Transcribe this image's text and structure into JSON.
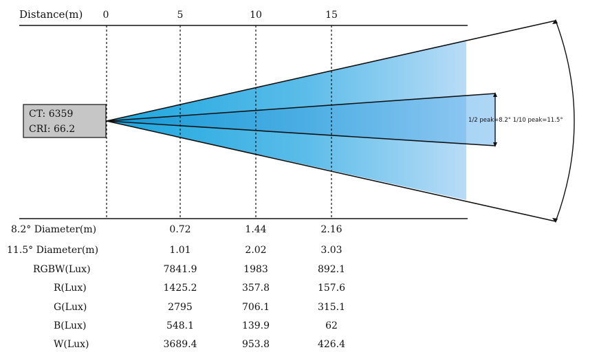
{
  "header": {
    "distance_label": "Distance(m)",
    "ticks": [
      "0",
      "5",
      "10",
      "15"
    ]
  },
  "source_box": {
    "ct": "CT: 6359",
    "cri": "CRI: 66.2"
  },
  "beam": {
    "half_peak_label": "1/2 peak=8.2° 1/10 peak=11.5°"
  },
  "table": {
    "rows": [
      {
        "label": "8.2° Diameter(m)",
        "values": [
          "0.72",
          "1.44",
          "2.16"
        ]
      },
      {
        "label": "11.5° Diameter(m)",
        "values": [
          "1.01",
          "2.02",
          "3.03"
        ]
      },
      {
        "label": "RGBW(Lux)",
        "values": [
          "7841.9",
          "1983",
          "892.1"
        ]
      },
      {
        "label": "R(Lux)",
        "values": [
          "1425.2",
          "357.8",
          "157.6"
        ]
      },
      {
        "label": "G(Lux)",
        "values": [
          "2795",
          "706.1",
          "315.1"
        ]
      },
      {
        "label": "B(Lux)",
        "values": [
          "548.1",
          "139.9",
          "62"
        ]
      },
      {
        "label": "W(Lux)",
        "values": [
          "3689.4",
          "953.8",
          "426.4"
        ]
      }
    ]
  },
  "colors": {
    "beam_near": "#1aa6de",
    "beam_far": "#b9dcf7",
    "box_fill": "#c6c6c6",
    "line": "#111111"
  }
}
